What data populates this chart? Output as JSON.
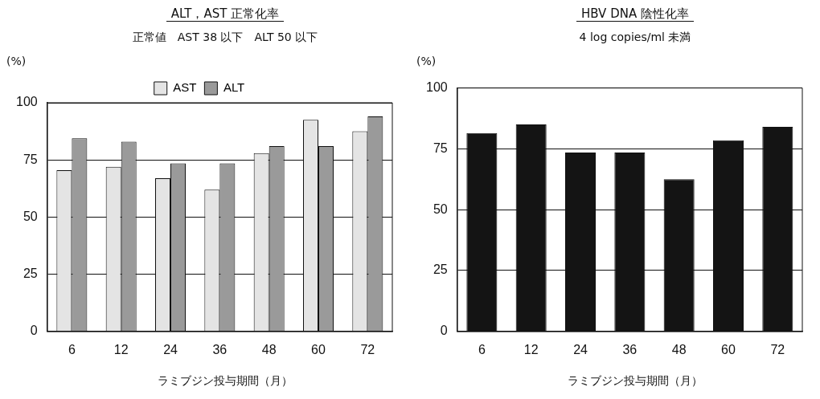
{
  "chart_data": [
    {
      "type": "bar",
      "title": "ALT，AST 正常化率",
      "subtitle": "正常値　AST 38 以下　ALT 50 以下",
      "xlabel": "ラミブジン投与期間（月）",
      "ylabel": "(%)",
      "categories": [
        "6",
        "12",
        "24",
        "36",
        "48",
        "60",
        "72"
      ],
      "series": [
        {
          "name": "AST",
          "color": "#e4e4e4",
          "values": [
            70.5,
            72,
            67,
            62,
            78,
            92.5,
            87.5
          ]
        },
        {
          "name": "ALT",
          "color": "#9a9a9a",
          "values": [
            84.5,
            83,
            73.5,
            73.5,
            81,
            81,
            94
          ]
        }
      ],
      "ylim": [
        0,
        100
      ],
      "yticks": [
        0,
        25,
        50,
        75,
        100
      ],
      "grid": "y",
      "legend": "top"
    },
    {
      "type": "bar",
      "title": "HBV DNA 陰性化率",
      "subtitle": "4 log copies/ml 未満",
      "xlabel": "ラミブジン投与期間（月）",
      "ylabel": "(%)",
      "categories": [
        "6",
        "12",
        "24",
        "36",
        "48",
        "60",
        "72"
      ],
      "series": [
        {
          "color": "#141414",
          "values": [
            81.5,
            85,
            73.5,
            73.5,
            62.5,
            78.5,
            84
          ]
        }
      ],
      "ylim": [
        0,
        100
      ],
      "yticks": [
        0,
        25,
        50,
        75,
        100
      ],
      "grid": "y"
    }
  ]
}
